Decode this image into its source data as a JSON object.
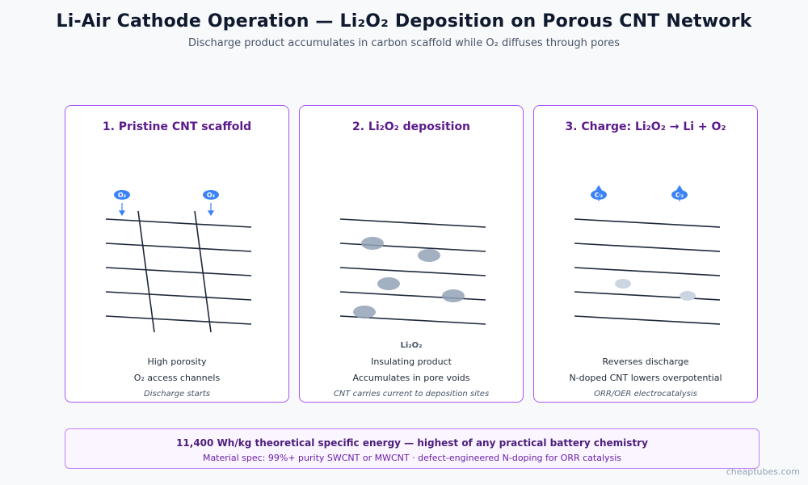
{
  "header": {
    "title": "Li-Air Cathode Operation — Li₂O₂ Deposition on Porous CNT Network",
    "subtitle": "Discharge product accumulates in carbon scaffold while O₂ diffuses through pores"
  },
  "panels": [
    {
      "title": "1. Pristine CNT scaffold",
      "o2_label": "O₂",
      "lines": [
        "High porosity",
        "O₂ access channels"
      ],
      "caption": "Discharge starts"
    },
    {
      "title": "2. Li₂O₂ deposition",
      "product_label": "Li₂O₂",
      "lines": [
        "Insulating product",
        "Accumulates in pore voids"
      ],
      "caption": "CNT carries current to deposition sites"
    },
    {
      "title": "3. Charge: Li₂O₂ → Li + O₂",
      "o2_label": "O₂",
      "lines": [
        "Reverses discharge",
        "N-doped CNT lowers overpotential"
      ],
      "caption": "ORR/OER electrocatalysis"
    }
  ],
  "banner": {
    "headline": "11,400 Wh/kg theoretical specific energy — highest of any practical battery chemistry",
    "spec": "Material spec: 99%+ purity SWCNT or MWCNT · defect-engineered N-doping for ORR catalysis"
  },
  "watermark": "cheaptubes.com",
  "colors": {
    "accent": "#a855f7",
    "panel_title": "#5b1a8b",
    "cnt_line": "#1e293b",
    "o2_badge": "#3b82f6",
    "li2o2_deposit": "#94a3b8"
  }
}
